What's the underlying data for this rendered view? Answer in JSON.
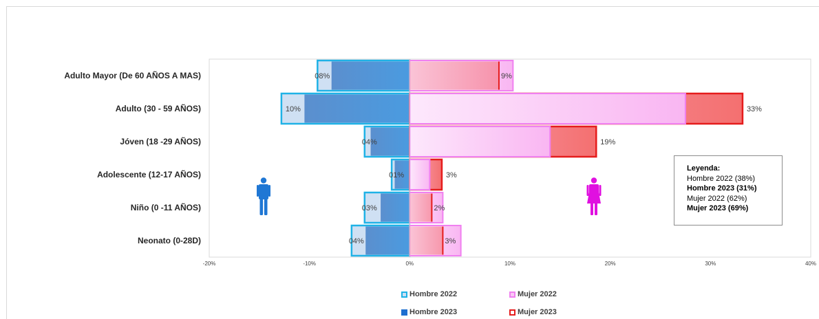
{
  "chart_data": {
    "type": "bar",
    "orientation": "horizontal",
    "categories": [
      "Adulto Mayor (De 60 AÑOS A MAS)",
      "Adulto (30 - 59 AÑOS)",
      "Jóven (18 -29 AÑOS)",
      "Adolescente (12-17 AÑOS)",
      "Niño (0 -11 AÑOS)",
      "Neonato (0-28D)"
    ],
    "series": [
      {
        "name": "Hombre  2022",
        "values": [
          -9.2,
          -12.8,
          -4.5,
          -1.8,
          -4.5,
          -5.8
        ],
        "fill": "#cfe0f3",
        "stroke": "#1fb2e6"
      },
      {
        "name": "Hombre  2023",
        "values": [
          -7.8,
          -10.5,
          -3.9,
          -1.5,
          -2.9,
          -4.4
        ],
        "fill": "#4a8bd0",
        "stroke": "#4a8bd0"
      },
      {
        "name": "Mujer 2022",
        "values": [
          10.3,
          27.5,
          14.0,
          2.0,
          3.3,
          5.1
        ],
        "fill": "#fac8f6",
        "stroke": "#f080f0"
      },
      {
        "name": "Mujer 2023",
        "values": [
          8.9,
          33.2,
          18.6,
          3.2,
          2.2,
          3.3
        ],
        "fill": "#f47c7c",
        "stroke": "#e51c1c"
      }
    ],
    "labels": [
      {
        "hombre": "08%",
        "mujer": "9%"
      },
      {
        "hombre": "10%",
        "mujer": "33%"
      },
      {
        "hombre": "04%",
        "mujer": "19%"
      },
      {
        "hombre": "01%",
        "mujer": "3%"
      },
      {
        "hombre": "03%",
        "mujer": "2%"
      },
      {
        "hombre": "04%",
        "mujer": "3%"
      }
    ],
    "xlim": [
      -20,
      40
    ],
    "x_ticks": [
      -20,
      -10,
      0,
      10,
      20,
      30,
      40
    ],
    "x_tick_labels": [
      "-20%",
      "-10%",
      "0%",
      "10%",
      "20%",
      "30%",
      "40%"
    ],
    "title": "",
    "xlabel": "",
    "ylabel": "",
    "grid": false,
    "legend_position": "bottom"
  },
  "legend_box": {
    "title": "Leyenda:",
    "lines": [
      {
        "text": "Hombre 2022 (38%)",
        "bold": false
      },
      {
        "text": "Hombre 2023 (31%)",
        "bold": true
      },
      {
        "text": "Mujer 2022 (62%)",
        "bold": false
      },
      {
        "text": "Mujer 2023 (69%)",
        "bold": true
      }
    ]
  },
  "icons": {
    "male": "male-person-icon",
    "female": "female-person-icon",
    "male_color": "#1f77d4",
    "female_color": "#e010e0"
  }
}
